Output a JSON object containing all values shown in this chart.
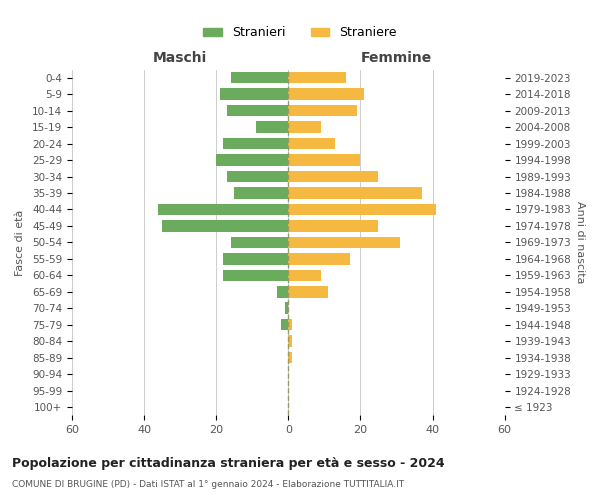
{
  "age_groups": [
    "100+",
    "95-99",
    "90-94",
    "85-89",
    "80-84",
    "75-79",
    "70-74",
    "65-69",
    "60-64",
    "55-59",
    "50-54",
    "45-49",
    "40-44",
    "35-39",
    "30-34",
    "25-29",
    "20-24",
    "15-19",
    "10-14",
    "5-9",
    "0-4"
  ],
  "birth_years": [
    "≤ 1923",
    "1924-1928",
    "1929-1933",
    "1934-1938",
    "1939-1943",
    "1944-1948",
    "1949-1953",
    "1954-1958",
    "1959-1963",
    "1964-1968",
    "1969-1973",
    "1974-1978",
    "1979-1983",
    "1984-1988",
    "1989-1993",
    "1994-1998",
    "1999-2003",
    "2004-2008",
    "2009-2013",
    "2014-2018",
    "2019-2023"
  ],
  "males": [
    0,
    0,
    0,
    0,
    0,
    2,
    1,
    3,
    18,
    18,
    16,
    35,
    36,
    15,
    17,
    20,
    18,
    9,
    17,
    19,
    16
  ],
  "females": [
    0,
    0,
    0,
    1,
    1,
    1,
    0,
    11,
    9,
    17,
    31,
    25,
    41,
    37,
    25,
    20,
    13,
    9,
    19,
    21,
    16
  ],
  "male_color": "#6aab5e",
  "female_color": "#f5b942",
  "xlim": 60,
  "title": "Popolazione per cittadinanza straniera per età e sesso - 2024",
  "subtitle": "COMUNE DI BRUGINE (PD) - Dati ISTAT al 1° gennaio 2024 - Elaborazione TUTTITALIA.IT",
  "legend_male": "Stranieri",
  "legend_female": "Straniere",
  "left_label": "Maschi",
  "right_label": "Femmine",
  "ylabel_left": "Fasce di età",
  "ylabel_right": "Anni di nascita",
  "background_color": "#ffffff",
  "grid_color": "#cccccc"
}
